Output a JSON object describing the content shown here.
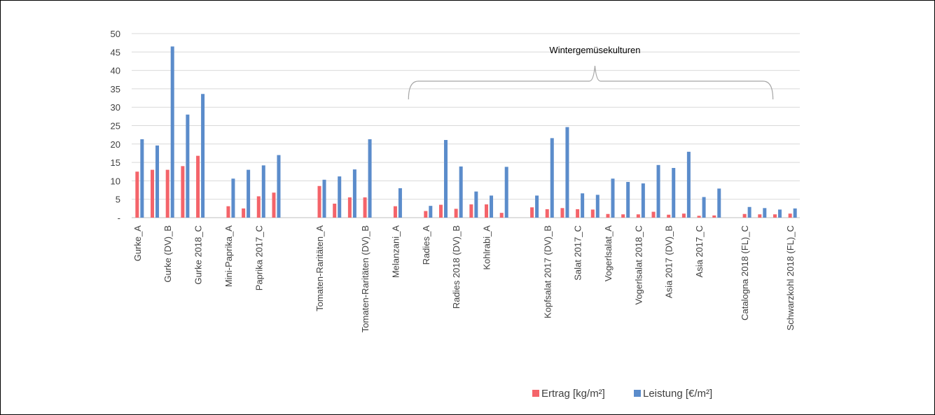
{
  "chart_data": {
    "type": "bar",
    "ylim": [
      0,
      50
    ],
    "yticks": [
      {
        "value": 0,
        "label": "-"
      },
      {
        "value": 5,
        "label": "5"
      },
      {
        "value": 10,
        "label": "10"
      },
      {
        "value": 15,
        "label": "15"
      },
      {
        "value": 20,
        "label": "20"
      },
      {
        "value": 25,
        "label": "25"
      },
      {
        "value": 30,
        "label": "30"
      },
      {
        "value": 35,
        "label": "35"
      },
      {
        "value": 40,
        "label": "40"
      },
      {
        "value": 45,
        "label": "45"
      },
      {
        "value": 50,
        "label": "50"
      }
    ],
    "grid": true,
    "legend_position": "bottom-right",
    "annotation": {
      "text": "Wintergemüsekulturen",
      "from_slot": 18,
      "to_slot": 41
    },
    "colors": {
      "Ertrag": "#f4646a",
      "Leistung": "#5b8ccb"
    },
    "slots": [
      {
        "label": "Gurke_A",
        "ertrag": 12.5,
        "leistung": 21.3
      },
      {
        "label": "",
        "ertrag": 13.0,
        "leistung": 19.6
      },
      {
        "label": "Gurke (DV)_B",
        "ertrag": 13.0,
        "leistung": 46.5
      },
      {
        "label": "",
        "ertrag": 14.0,
        "leistung": 28.0
      },
      {
        "label": "Gurke 2018_C",
        "ertrag": 16.8,
        "leistung": 33.6
      },
      {
        "label": "",
        "ertrag": null,
        "leistung": null
      },
      {
        "label": "Mini-Paprika_A",
        "ertrag": 3.1,
        "leistung": 10.6
      },
      {
        "label": "",
        "ertrag": 2.5,
        "leistung": 13.0
      },
      {
        "label": "Paprika 2017_C",
        "ertrag": 5.8,
        "leistung": 14.2
      },
      {
        "label": "",
        "ertrag": 6.8,
        "leistung": 17.0
      },
      {
        "label": "",
        "ertrag": null,
        "leistung": null
      },
      {
        "label": "",
        "ertrag": null,
        "leistung": null
      },
      {
        "label": "Tomaten-Raritäten_A",
        "ertrag": 8.6,
        "leistung": 10.3
      },
      {
        "label": "",
        "ertrag": 3.8,
        "leistung": 11.2
      },
      {
        "label": "",
        "ertrag": 5.5,
        "leistung": 13.1
      },
      {
        "label": "Tomaten-Raritäten (DV)_B",
        "ertrag": 5.5,
        "leistung": 21.3
      },
      {
        "label": "",
        "ertrag": null,
        "leistung": null
      },
      {
        "label": "Melanzani_A",
        "ertrag": 3.1,
        "leistung": 8.0
      },
      {
        "label": "",
        "ertrag": null,
        "leistung": null
      },
      {
        "label": "Radies_A",
        "ertrag": 1.8,
        "leistung": 3.2
      },
      {
        "label": "",
        "ertrag": 3.5,
        "leistung": 21.1
      },
      {
        "label": "Radies 2018 (DV)_B",
        "ertrag": 2.4,
        "leistung": 13.9
      },
      {
        "label": "",
        "ertrag": 3.6,
        "leistung": 7.1
      },
      {
        "label": "Kohlrabi_A",
        "ertrag": 3.6,
        "leistung": 6.0
      },
      {
        "label": "",
        "ertrag": 1.3,
        "leistung": 13.8
      },
      {
        "label": "",
        "ertrag": null,
        "leistung": null
      },
      {
        "label": "",
        "ertrag": 2.8,
        "leistung": 6.0
      },
      {
        "label": "Kopfsalat 2017 (DV)_B",
        "ertrag": 2.3,
        "leistung": 21.6
      },
      {
        "label": "",
        "ertrag": 2.6,
        "leistung": 24.6
      },
      {
        "label": "Salat 2017_C",
        "ertrag": 2.3,
        "leistung": 6.6
      },
      {
        "label": "",
        "ertrag": 2.2,
        "leistung": 6.2
      },
      {
        "label": "Vogerlsalat_A",
        "ertrag": 1.0,
        "leistung": 10.6
      },
      {
        "label": "",
        "ertrag": 0.9,
        "leistung": 9.7
      },
      {
        "label": "Vogerlsalat 2018_C",
        "ertrag": 0.9,
        "leistung": 9.3
      },
      {
        "label": "",
        "ertrag": 1.6,
        "leistung": 14.3
      },
      {
        "label": "Asia 2017 (DV)_B",
        "ertrag": 0.8,
        "leistung": 13.5
      },
      {
        "label": "",
        "ertrag": 1.1,
        "leistung": 17.9
      },
      {
        "label": "Asia 2017_C",
        "ertrag": 0.5,
        "leistung": 5.6
      },
      {
        "label": "",
        "ertrag": 0.6,
        "leistung": 7.9
      },
      {
        "label": "",
        "ertrag": null,
        "leistung": null
      },
      {
        "label": "Catalogna 2018 (FL)_C",
        "ertrag": 1.0,
        "leistung": 2.9
      },
      {
        "label": "",
        "ertrag": 0.9,
        "leistung": 2.6
      },
      {
        "label": "",
        "ertrag": 0.9,
        "leistung": 2.2
      },
      {
        "label": "Schwarzkohl 2018 (FL)_C",
        "ertrag": 1.1,
        "leistung": 2.5
      }
    ],
    "series": [
      {
        "name": "Ertrag [kg/m²]",
        "key": "ertrag"
      },
      {
        "name": "Leistung [€/m²]",
        "key": "leistung"
      }
    ]
  }
}
